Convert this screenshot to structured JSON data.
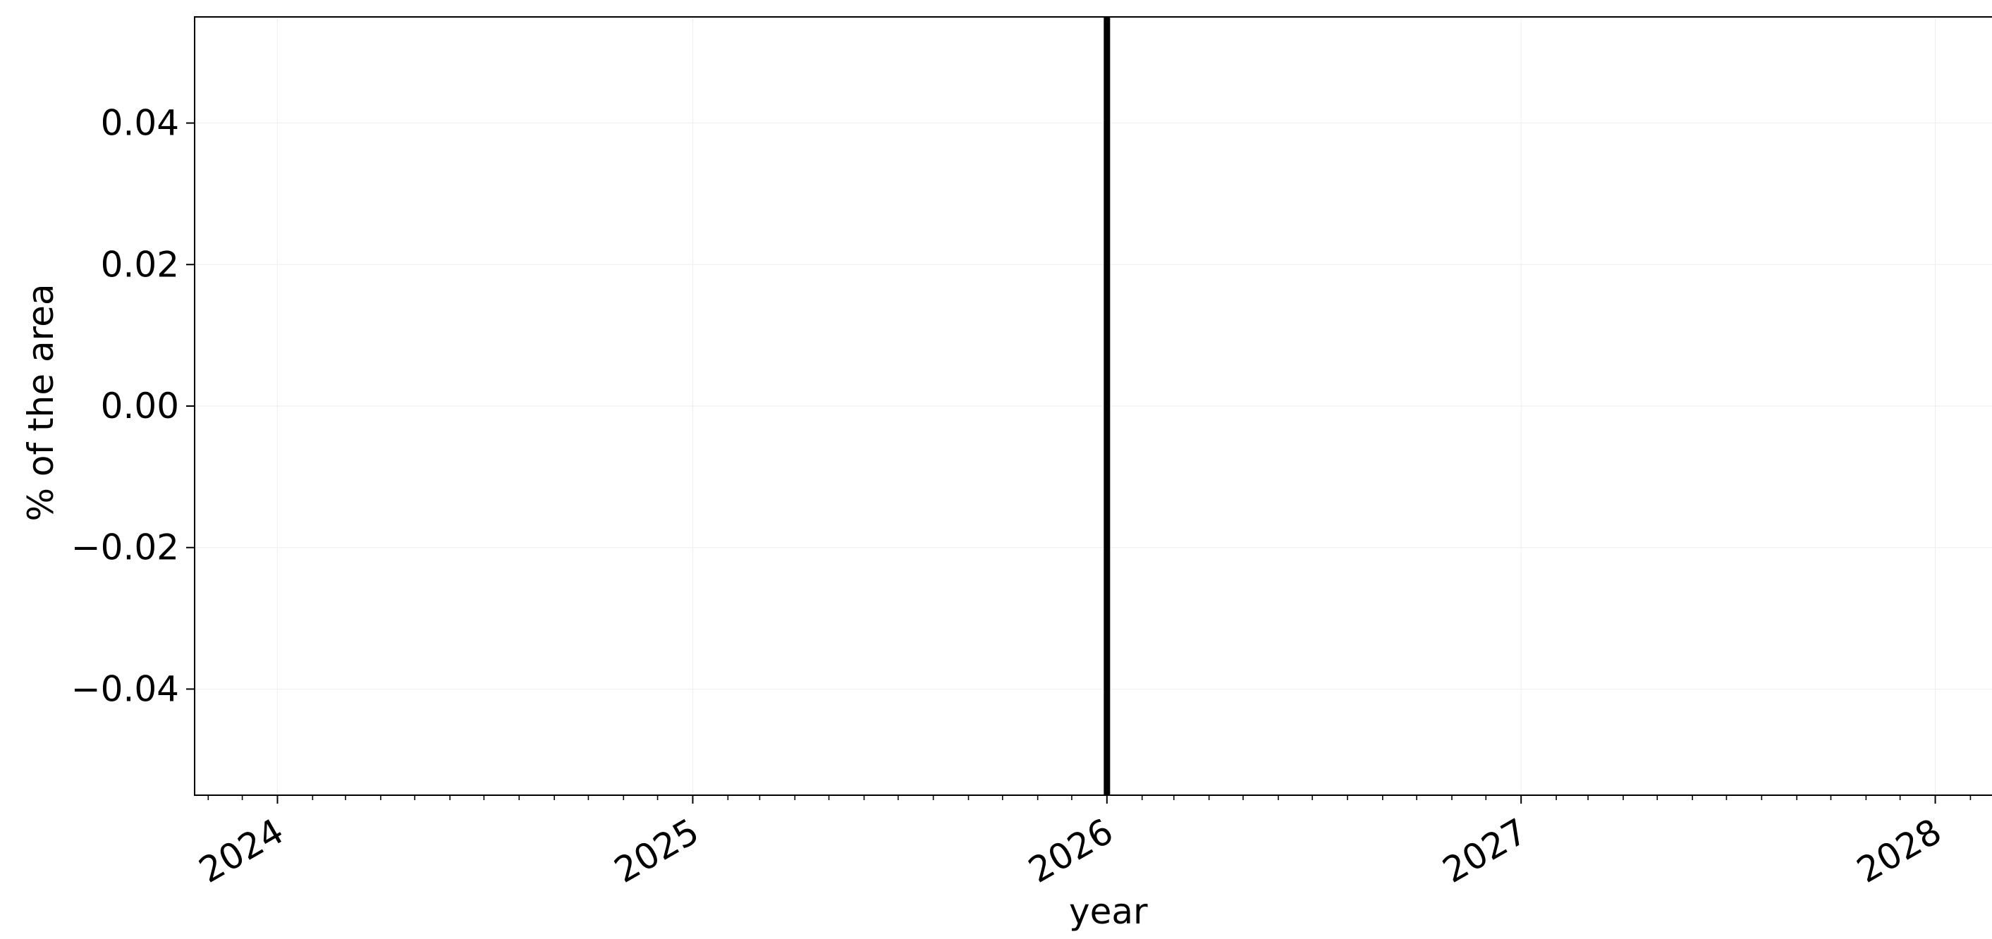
{
  "chart_data": {
    "type": "line",
    "title": "",
    "xlabel": "year",
    "ylabel": "% of the area",
    "x_axis": {
      "kind": "date",
      "range": [
        "2023-10-20",
        "2028-02-20"
      ],
      "major_ticks": [
        {
          "date": "2024-01-01",
          "label": "2024"
        },
        {
          "date": "2025-01-01",
          "label": "2025"
        },
        {
          "date": "2026-01-01",
          "label": "2026"
        },
        {
          "date": "2027-01-01",
          "label": "2027"
        },
        {
          "date": "2028-01-01",
          "label": "2028"
        }
      ],
      "minor_ticks": "monthly",
      "tick_label_rotation": "30 degrees"
    },
    "y_axis": {
      "ylim": [
        -0.055,
        0.055
      ],
      "ticks": [
        {
          "value": 0.04,
          "label": "0.04"
        },
        {
          "value": 0.02,
          "label": "0.02"
        },
        {
          "value": 0.0,
          "label": "0.00"
        },
        {
          "value": -0.02,
          "label": "−0.02"
        },
        {
          "value": -0.04,
          "label": "−0.04"
        }
      ]
    },
    "grid": "faint",
    "series": [],
    "annotations": [
      {
        "type": "vertical-line",
        "date": "2026-01-01",
        "color": "#000000"
      }
    ]
  }
}
